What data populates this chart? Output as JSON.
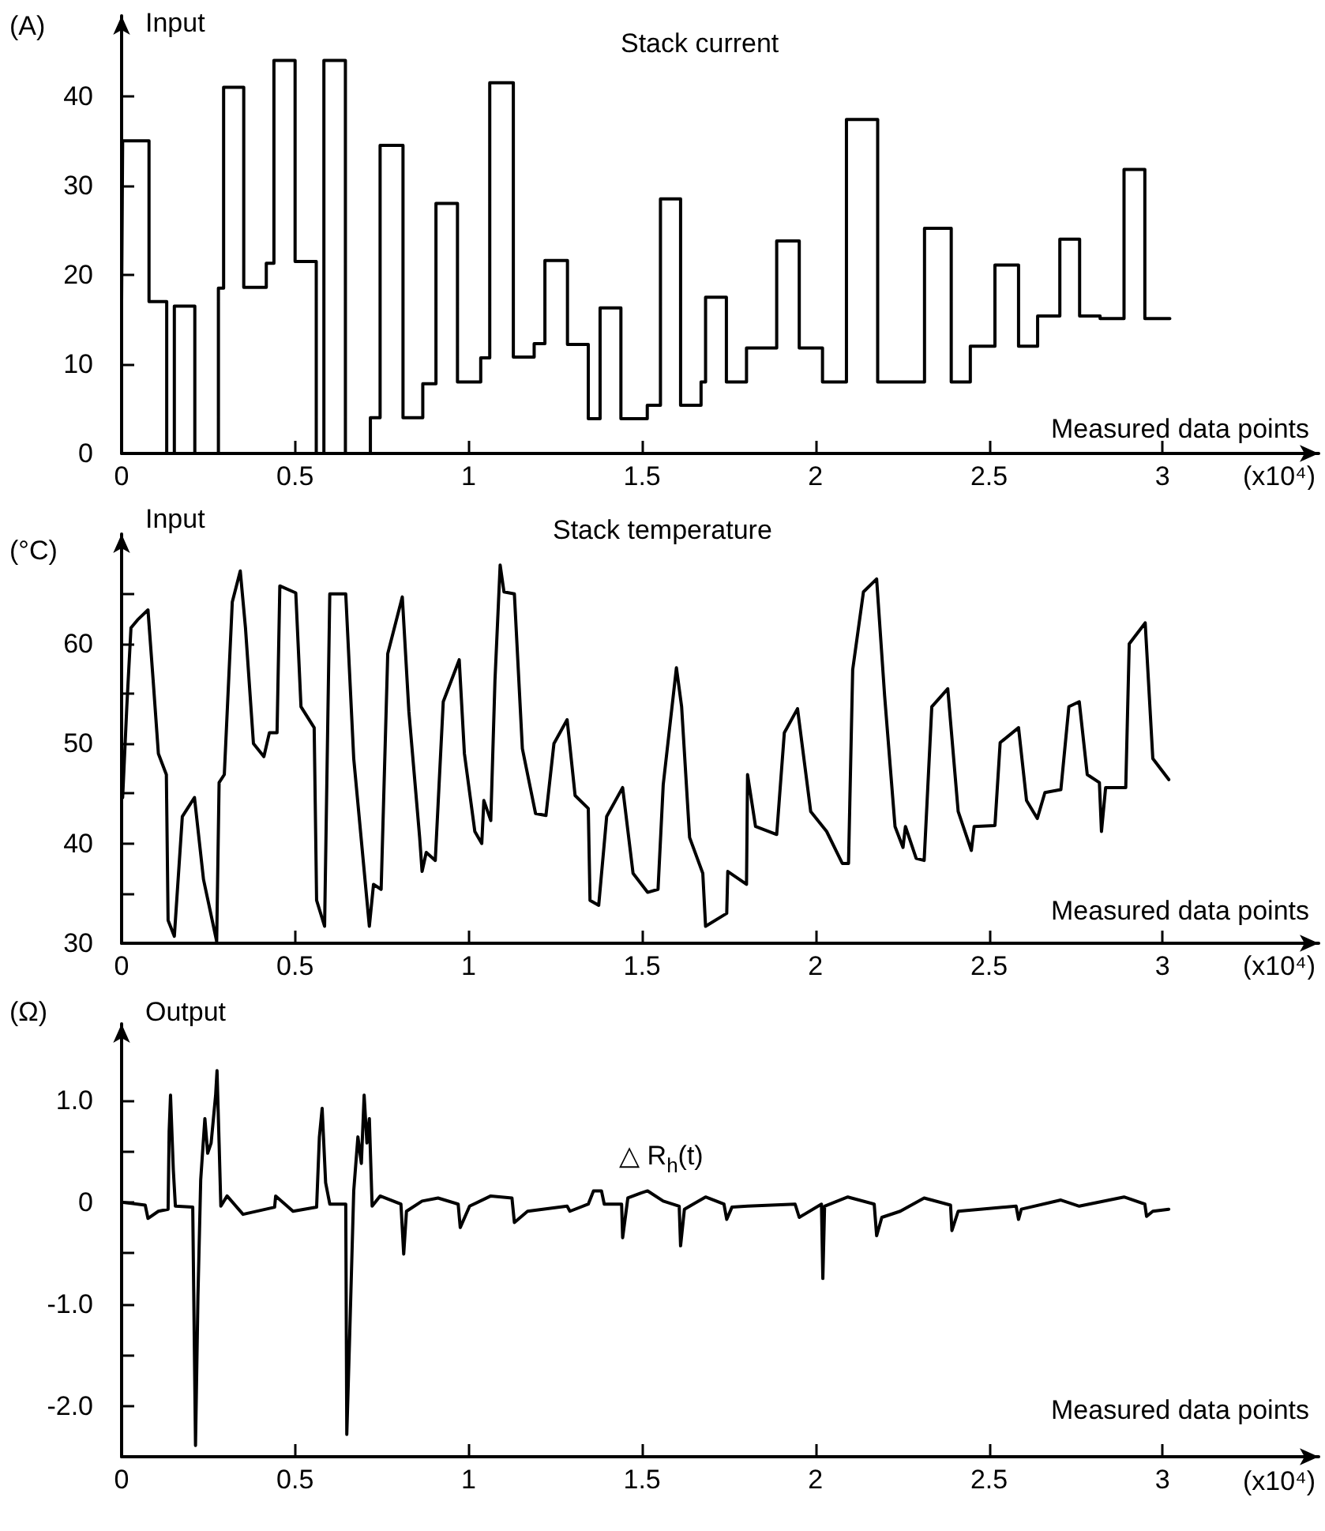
{
  "chart_data": [
    {
      "type": "step",
      "title": "Stack current",
      "ylabel": "(A)",
      "xlabel": "Measured data points",
      "annotations": [
        "Input",
        "(x10⁴)"
      ],
      "marker": "none",
      "xlim": [
        0,
        3.45
      ],
      "xticks": [
        0,
        0.5,
        1,
        1.5,
        2,
        2.5,
        3
      ],
      "ylim": [
        0,
        49
      ],
      "yticks": [
        0,
        10,
        20,
        30,
        40
      ],
      "series": [
        {
          "color": "#000000",
          "x": [
            0,
            0.003,
            0.079,
            0.13,
            0.152,
            0.211,
            0.279,
            0.294,
            0.352,
            0.417,
            0.439,
            0.5,
            0.561,
            0.583,
            0.645,
            0.717,
            0.745,
            0.811,
            0.868,
            0.906,
            0.968,
            1.035,
            1.061,
            1.129,
            1.189,
            1.22,
            1.285,
            1.345,
            1.379,
            1.439,
            1.515,
            1.553,
            1.611,
            1.67,
            1.683,
            1.743,
            1.801,
            1.888,
            1.953,
            2.02,
            2.089,
            2.179,
            2.314,
            2.391,
            2.446,
            2.517,
            2.585,
            2.64,
            2.704,
            2.761,
            2.82,
            2.889,
            2.949,
            3.021
          ],
          "values": [
            17,
            35,
            17,
            0,
            16.5,
            0,
            18.5,
            41,
            18.6,
            21.3,
            44,
            21.5,
            0,
            44,
            0,
            4,
            34.5,
            4,
            7.8,
            28,
            8,
            10.7,
            41.5,
            10.8,
            12.3,
            21.6,
            12.2,
            3.9,
            16.3,
            3.9,
            5.4,
            28.5,
            5.4,
            8,
            17.5,
            8,
            11.8,
            23.8,
            11.8,
            8,
            37.4,
            8,
            25.2,
            8,
            12,
            21.1,
            12,
            15.4,
            24,
            15.4,
            15.1,
            31.8,
            15.1,
            15.1
          ]
        }
      ]
    },
    {
      "type": "line",
      "title": "Stack temperature",
      "ylabel": "(°C)",
      "xlabel": "Measured data points",
      "annotations": [
        "Input",
        "(x10⁴)"
      ],
      "marker": "none",
      "xlim": [
        0,
        3.45
      ],
      "xticks": [
        0,
        0.5,
        1,
        1.5,
        2,
        2.5,
        3
      ],
      "ylim": [
        30,
        71
      ],
      "yticks": [
        30,
        {
          "value": 35,
          "label": null
        },
        40,
        {
          "value": 45,
          "label": null
        },
        50,
        {
          "value": 55,
          "label": null
        },
        60,
        {
          "value": 65,
          "label": null
        }
      ],
      "series": [
        {
          "color": "#000000",
          "x": [
            0.003,
            0.015,
            0.027,
            0.046,
            0.076,
            0.091,
            0.106,
            0.129,
            0.134,
            0.152,
            0.175,
            0.21,
            0.236,
            0.274,
            0.281,
            0.296,
            0.319,
            0.342,
            0.357,
            0.38,
            0.41,
            0.426,
            0.448,
            0.456,
            0.502,
            0.517,
            0.555,
            0.562,
            0.585,
            0.6,
            0.646,
            0.669,
            0.714,
            0.726,
            0.748,
            0.767,
            0.809,
            0.828,
            0.859,
            0.866,
            0.878,
            0.904,
            0.927,
            0.973,
            0.988,
            1.018,
            1.038,
            1.044,
            1.064,
            1.076,
            1.091,
            1.102,
            1.132,
            1.155,
            1.193,
            1.223,
            1.246,
            1.284,
            1.307,
            1.345,
            1.35,
            1.375,
            1.398,
            1.444,
            1.474,
            1.516,
            1.546,
            1.561,
            1.599,
            1.614,
            1.637,
            1.675,
            1.683,
            1.744,
            1.747,
            1.801,
            1.804,
            1.827,
            1.888,
            1.91,
            1.948,
            1.986,
            2.032,
            2.077,
            2.095,
            2.107,
            2.138,
            2.176,
            2.199,
            2.229,
            2.252,
            2.259,
            2.29,
            2.313,
            2.335,
            2.381,
            2.411,
            2.449,
            2.457,
            2.517,
            2.532,
            2.585,
            2.608,
            2.639,
            2.661,
            2.707,
            2.73,
            2.76,
            2.783,
            2.818,
            2.824,
            2.836,
            2.894,
            2.904,
            2.95,
            2.972,
            3.018
          ],
          "values": [
            44.6,
            53.7,
            61.6,
            62.4,
            63.4,
            56.3,
            49,
            46.9,
            32.3,
            30.7,
            42.7,
            44.6,
            36.4,
            30.2,
            46.1,
            46.9,
            64.2,
            67.3,
            61.6,
            50,
            48.7,
            51.1,
            51.1,
            65.8,
            65.1,
            53.7,
            51.6,
            34.3,
            31.7,
            65,
            65,
            48.5,
            31.7,
            35.9,
            35.4,
            59,
            64.7,
            53.2,
            40.6,
            37.2,
            39.1,
            38.3,
            54.2,
            58.4,
            49,
            41.2,
            40,
            44.3,
            42.3,
            56.3,
            67.9,
            65.2,
            65,
            49.5,
            43,
            42.8,
            50,
            52.4,
            44.8,
            43.5,
            34.3,
            33.8,
            42.7,
            45.6,
            37,
            35.1,
            35.4,
            45.9,
            57.6,
            53.7,
            40.6,
            37,
            31.7,
            33,
            37.2,
            35.9,
            46.9,
            41.7,
            40.9,
            51.1,
            53.5,
            43.2,
            41.2,
            38,
            38,
            57.4,
            65.2,
            66.5,
            54.8,
            41.7,
            39.6,
            41.7,
            38.5,
            38.3,
            53.7,
            55.5,
            43.2,
            39.3,
            41.7,
            41.8,
            50.1,
            51.6,
            44.3,
            42.5,
            45.1,
            45.4,
            53.7,
            54.2,
            46.9,
            46.1,
            41.2,
            45.6,
            45.6,
            60,
            62.1,
            48.5,
            46.4
          ]
        }
      ]
    },
    {
      "type": "line",
      "title": "△ R$_{h}$(t)",
      "ylabel": "(Ω)",
      "xlabel": "Measured data points",
      "annotations": [
        "Output",
        "(x10⁴)"
      ],
      "marker": "none",
      "xlim": [
        0,
        3.45
      ],
      "xticks": [
        0,
        0.5,
        1,
        1.5,
        2,
        2.5,
        3
      ],
      "ylim": [
        -2.5,
        1.75
      ],
      "yticks": [
        {
          "value": 1,
          "label": "1.0"
        },
        {
          "value": 0.5,
          "label": null
        },
        0,
        {
          "value": -0.5,
          "label": null
        },
        {
          "value": -1,
          "label": "-1.0"
        },
        {
          "value": -1.5,
          "label": null
        },
        {
          "value": -2,
          "label": "-2.0"
        }
      ],
      "series": [
        {
          "color": "#000000",
          "x": [
            0,
            0.068,
            0.076,
            0.106,
            0.134,
            0.137,
            0.141,
            0.149,
            0.155,
            0.205,
            0.213,
            0.22,
            0.228,
            0.24,
            0.248,
            0.258,
            0.271,
            0.275,
            0.281,
            0.286,
            0.304,
            0.35,
            0.441,
            0.444,
            0.494,
            0.562,
            0.57,
            0.578,
            0.588,
            0.6,
            0.646,
            0.649,
            0.657,
            0.669,
            0.681,
            0.691,
            0.699,
            0.707,
            0.714,
            0.722,
            0.745,
            0.805,
            0.813,
            0.821,
            0.866,
            0.912,
            0.97,
            0.976,
            1.003,
            1.064,
            1.125,
            1.132,
            1.17,
            1.284,
            1.292,
            1.345,
            1.36,
            1.383,
            1.391,
            1.441,
            1.444,
            1.459,
            1.497,
            1.516,
            1.561,
            1.607,
            1.611,
            1.622,
            1.683,
            1.736,
            1.744,
            1.759,
            1.804,
            1.941,
            1.953,
            2.017,
            2.021,
            2.026,
            2.093,
            2.169,
            2.176,
            2.191,
            2.244,
            2.313,
            2.389,
            2.393,
            2.411,
            2.578,
            2.585,
            2.593,
            2.707,
            2.76,
            2.889,
            2.949,
            2.954,
            2.972,
            3.018
          ],
          "values": [
            0,
            -0.03,
            -0.16,
            -0.09,
            -0.07,
            0.69,
            1.05,
            0.32,
            -0.04,
            -0.05,
            -2.39,
            -0.93,
            0.22,
            0.82,
            0.48,
            0.58,
            1.05,
            1.29,
            0.58,
            -0.04,
            0.06,
            -0.12,
            -0.05,
            0.06,
            -0.09,
            -0.05,
            0.64,
            0.92,
            0.19,
            -0.02,
            -0.02,
            -2.28,
            -1.35,
            0.11,
            0.64,
            0.38,
            1.05,
            0.58,
            0.82,
            -0.04,
            0.06,
            -0.02,
            -0.51,
            -0.09,
            0.01,
            0.04,
            -0.02,
            -0.25,
            -0.04,
            0.06,
            0.04,
            -0.2,
            -0.09,
            -0.04,
            -0.09,
            -0.02,
            0.11,
            0.11,
            -0.02,
            -0.02,
            -0.35,
            0.04,
            0.09,
            0.11,
            0.01,
            -0.04,
            -0.43,
            -0.07,
            0.05,
            -0.02,
            -0.17,
            -0.05,
            -0.04,
            -0.02,
            -0.15,
            -0.02,
            -0.75,
            -0.04,
            0.05,
            -0.02,
            -0.33,
            -0.15,
            -0.09,
            0.04,
            -0.03,
            -0.28,
            -0.09,
            -0.04,
            -0.17,
            -0.07,
            0.02,
            -0.04,
            0.05,
            -0.02,
            -0.14,
            -0.09,
            -0.07
          ]
        }
      ]
    }
  ]
}
